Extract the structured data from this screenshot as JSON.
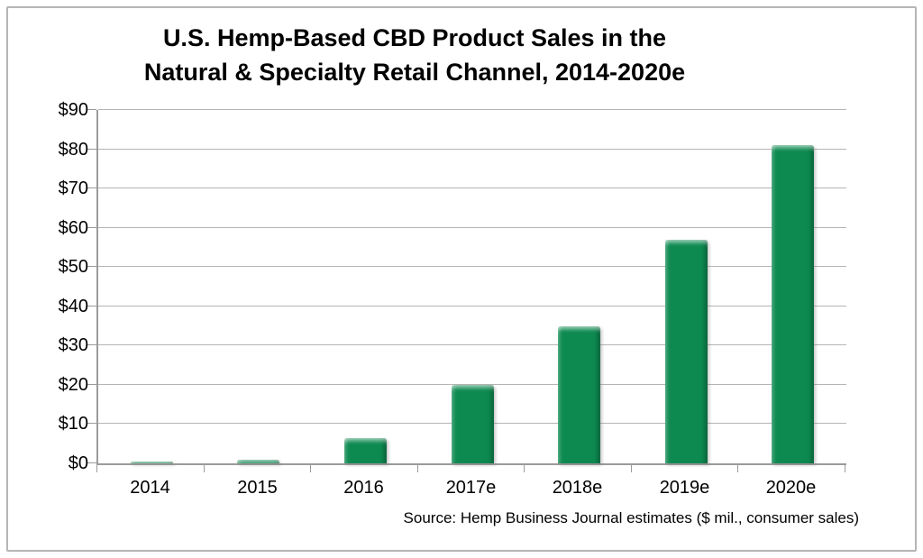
{
  "title": {
    "line1": "U.S. Hemp-Based CBD Product Sales in the",
    "line2": "Natural & Specialty Retail Channel, 2014-2020e"
  },
  "source_note": "Source: Hemp Business Journal estimates ($ mil., consumer sales)",
  "colors": {
    "bar": "#0d8a50",
    "gridline": "#b5b5b5",
    "axis": "#9b9b9b",
    "text": "#000000",
    "frame_border": "#b5b5b5",
    "background": "#ffffff"
  },
  "chart_data": {
    "type": "bar",
    "title": "U.S. Hemp-Based CBD Product Sales in the Natural & Specialty Retail Channel, 2014-2020e",
    "categories": [
      "2014",
      "2015",
      "2016",
      "2017e",
      "2018e",
      "2019e",
      "2020e"
    ],
    "values": [
      0.5,
      1,
      6.5,
      20,
      35,
      57,
      81
    ],
    "xlabel": "",
    "ylabel": "",
    "ylim": [
      0,
      90
    ],
    "ytick_step": 10,
    "ytick_labels": [
      "$0",
      "$10",
      "$20",
      "$30",
      "$40",
      "$50",
      "$60",
      "$70",
      "$80",
      "$90"
    ],
    "grid": true,
    "legend": false,
    "annotation": "Source: Hemp Business Journal estimates ($ mil., consumer sales)"
  }
}
